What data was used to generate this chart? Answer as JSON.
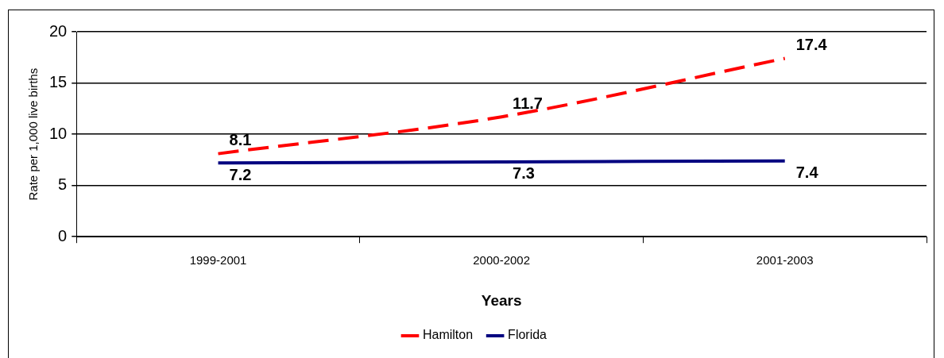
{
  "chart_data": {
    "type": "line",
    "xlabel": "Years",
    "ylabel": "Rate per 1,000 live births",
    "categories": [
      "1999-2001",
      "2000-2002",
      "2001-2003"
    ],
    "series": [
      {
        "name": "Hamilton",
        "color": "#ff0000",
        "values": [
          8.1,
          11.7,
          17.4
        ],
        "line_style": "dashed"
      },
      {
        "name": "Florida",
        "color": "#000080",
        "values": [
          7.2,
          7.3,
          7.4
        ],
        "line_style": "solid"
      }
    ],
    "ylim": [
      0,
      20
    ],
    "yticks": [
      0,
      5,
      10,
      15,
      20
    ],
    "grid": "y",
    "legend": "bottom",
    "data_labels": true,
    "marker": "none"
  }
}
